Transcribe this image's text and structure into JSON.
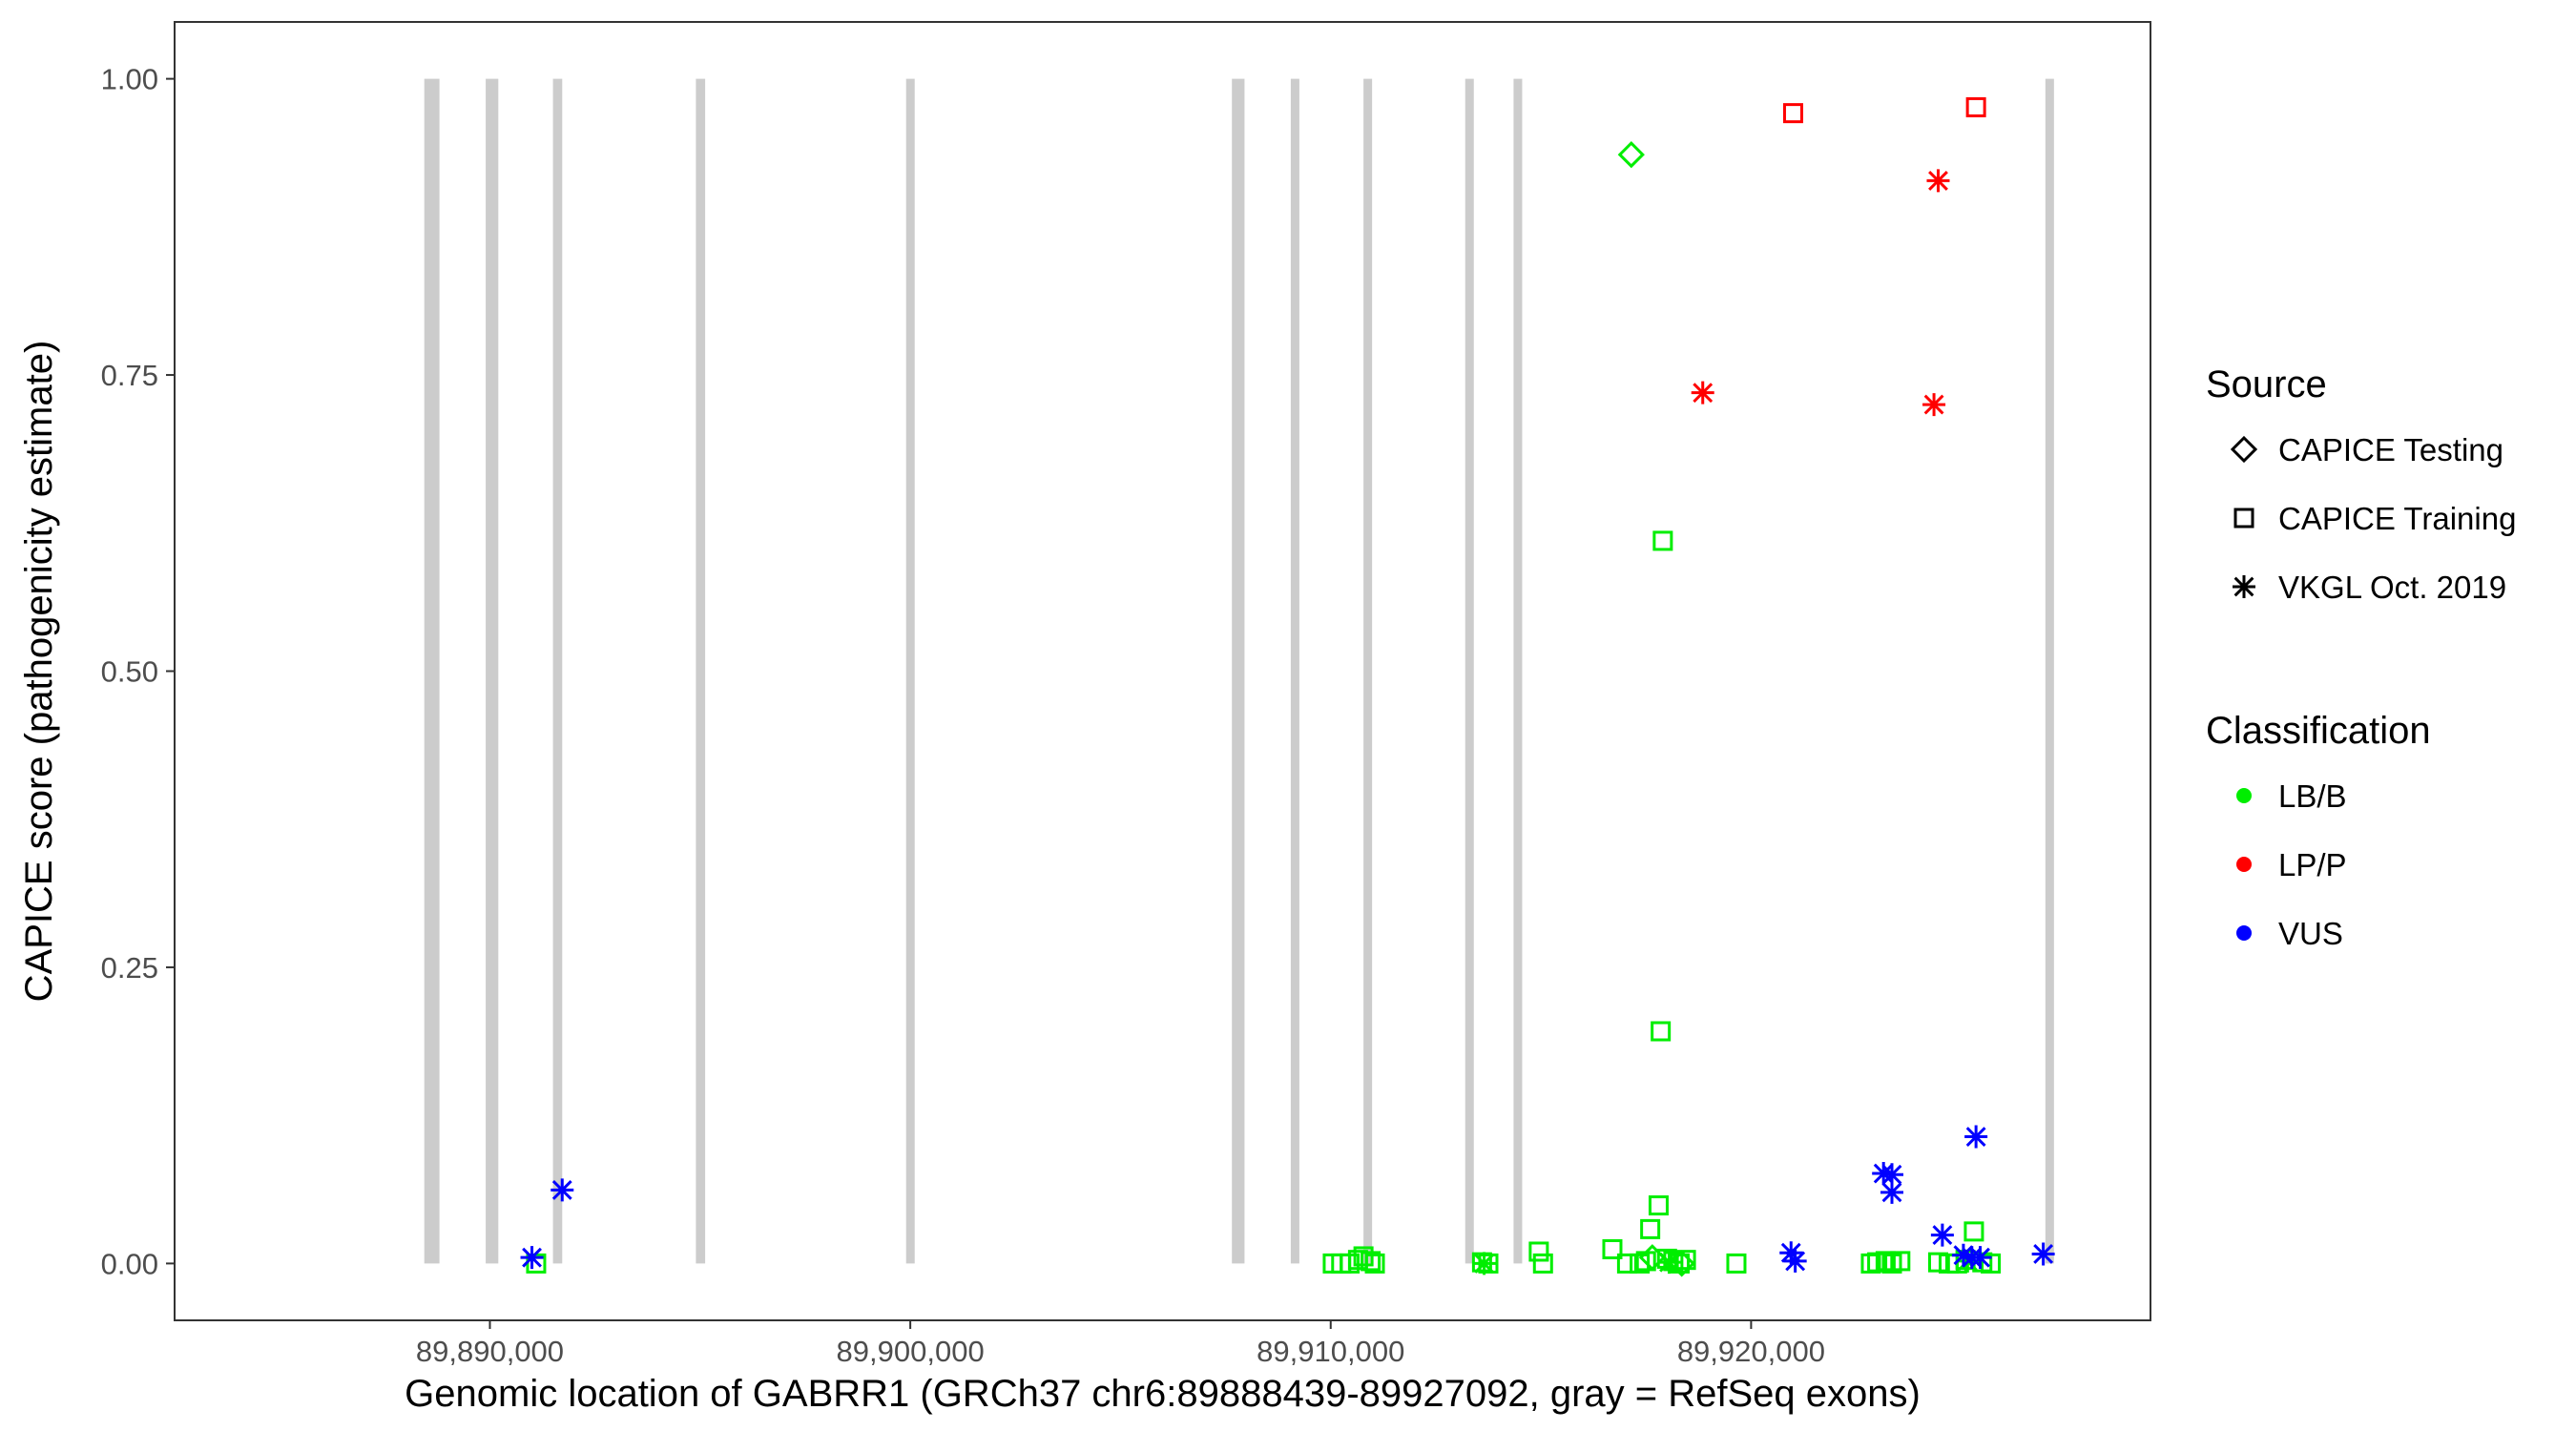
{
  "chart_data": {
    "type": "scatter",
    "title": "",
    "xlabel": "Genomic location of GABRR1 (GRCh37 chr6:89888439-89927092, gray = RefSeq exons)",
    "ylabel": "CAPICE score (pathogenicity estimate)",
    "xlim": [
      89882500,
      89929500
    ],
    "ylim": [
      -0.048,
      1.048
    ],
    "x_ticks": [
      89890000,
      89900000,
      89910000,
      89920000
    ],
    "x_tick_labels": [
      "89,890,000",
      "89,900,000",
      "89,910,000",
      "89,920,000"
    ],
    "y_ticks": [
      0,
      0.25,
      0.5,
      0.75,
      1.0
    ],
    "y_tick_labels": [
      "0.00",
      "0.25",
      "0.50",
      "0.75",
      "1.00"
    ],
    "grid": false,
    "exons": [
      [
        89888439,
        89888800
      ],
      [
        89889900,
        89890200
      ],
      [
        89891500,
        89891720
      ],
      [
        89894900,
        89895120
      ],
      [
        89899900,
        89900060
      ],
      [
        89907650,
        89907950
      ],
      [
        89909050,
        89909200
      ],
      [
        89910780,
        89910960
      ],
      [
        89913200,
        89913330
      ],
      [
        89914350,
        89914450
      ],
      [
        89927000,
        89927092
      ]
    ],
    "colors": {
      "LB/B": "#00ee00",
      "LP/P": "#ff0000",
      "VUS": "#0000ff"
    },
    "legend": {
      "placement": "right",
      "source_title": "Source",
      "source_items": [
        {
          "label": "CAPICE Testing",
          "shape": "diamond"
        },
        {
          "label": "CAPICE Training",
          "shape": "square"
        },
        {
          "label": "VKGL Oct. 2019",
          "shape": "star"
        }
      ],
      "class_title": "Classification",
      "class_items": [
        {
          "label": "LB/B",
          "color": "#00ee00"
        },
        {
          "label": "LP/P",
          "color": "#ff0000"
        },
        {
          "label": "VUS",
          "color": "#0000ff"
        }
      ]
    },
    "series": [
      {
        "name": "CAPICE Testing",
        "classification": "LB/B",
        "shape": "diamond",
        "points": [
          [
            89917150,
            0.936
          ],
          [
            89917650,
            0.005
          ],
          [
            89918350,
            0.0
          ]
        ]
      },
      {
        "name": "CAPICE Training",
        "classification": "LB/B",
        "shape": "square",
        "points": [
          [
            89891100,
            0.0
          ],
          [
            89910050,
            0.0
          ],
          [
            89910250,
            0.0
          ],
          [
            89910450,
            0.0
          ],
          [
            89910650,
            0.003
          ],
          [
            89910780,
            0.006
          ],
          [
            89910950,
            0.002
          ],
          [
            89911050,
            0.0
          ],
          [
            89913600,
            0.001
          ],
          [
            89913750,
            0.0
          ],
          [
            89914950,
            0.01
          ],
          [
            89915050,
            0.0
          ],
          [
            89916700,
            0.012
          ],
          [
            89917050,
            0.0
          ],
          [
            89917350,
            0.0
          ],
          [
            89917500,
            0.002
          ],
          [
            89917600,
            0.029
          ],
          [
            89917800,
            0.049
          ],
          [
            89917900,
            0.61
          ],
          [
            89917850,
            0.196
          ],
          [
            89918000,
            0.004
          ],
          [
            89918150,
            0.002
          ],
          [
            89918300,
            0.0
          ],
          [
            89918450,
            0.003
          ],
          [
            89919650,
            0.0
          ],
          [
            89922850,
            0.0
          ],
          [
            89923000,
            0.001
          ],
          [
            89923200,
            0.002
          ],
          [
            89923350,
            0.0
          ],
          [
            89923550,
            0.002
          ],
          [
            89924450,
            0.001
          ],
          [
            89924700,
            0.0
          ],
          [
            89924900,
            0.0
          ],
          [
            89925100,
            0.003
          ],
          [
            89925300,
            0.027
          ],
          [
            89925500,
            0.001
          ],
          [
            89925700,
            0.0
          ]
        ]
      },
      {
        "name": "CAPICE Training",
        "classification": "LP/P",
        "shape": "square",
        "points": [
          [
            89921000,
            0.971
          ],
          [
            89925350,
            0.976
          ]
        ]
      },
      {
        "name": "VKGL Oct. 2019",
        "classification": "LB/B",
        "shape": "star",
        "points": [
          [
            89913650,
            0.0
          ],
          [
            89918050,
            0.001
          ],
          [
            89925150,
            0.002
          ]
        ]
      },
      {
        "name": "VKGL Oct. 2019",
        "classification": "LP/P",
        "shape": "star",
        "points": [
          [
            89918850,
            0.735
          ],
          [
            89924350,
            0.725
          ],
          [
            89924450,
            0.914
          ]
        ]
      },
      {
        "name": "VKGL Oct. 2019",
        "classification": "VUS",
        "shape": "star",
        "points": [
          [
            89891000,
            0.005
          ],
          [
            89891720,
            0.062
          ],
          [
            89920950,
            0.009
          ],
          [
            89921050,
            0.002
          ],
          [
            89923150,
            0.076
          ],
          [
            89923350,
            0.075
          ],
          [
            89923350,
            0.06
          ],
          [
            89924550,
            0.024
          ],
          [
            89925050,
            0.007
          ],
          [
            89925250,
            0.005
          ],
          [
            89925350,
            0.107
          ],
          [
            89925450,
            0.005
          ],
          [
            89926950,
            0.008
          ]
        ]
      }
    ]
  }
}
